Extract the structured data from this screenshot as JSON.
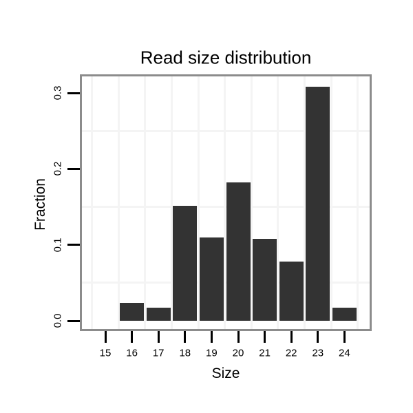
{
  "chart_data": {
    "type": "bar",
    "title": "Read size distribution",
    "xlabel": "Size",
    "ylabel": "Fraction",
    "categories": [
      "15",
      "16",
      "17",
      "18",
      "19",
      "20",
      "21",
      "22",
      "23",
      "24"
    ],
    "values": [
      0,
      0.024,
      0.017,
      0.151,
      0.11,
      0.182,
      0.108,
      0.078,
      0.308,
      0.017
    ],
    "ylim": [
      0,
      0.322
    ],
    "yticks": [
      0.0,
      0.1,
      0.2,
      0.3
    ],
    "ytick_labels": [
      "0.0",
      "0.1",
      "0.2",
      "0.3"
    ],
    "grid": {
      "horizontal_minor_at": [
        0.05,
        0.15,
        0.25
      ],
      "vertical_at_category_boundaries": true
    },
    "legend_position": "none",
    "colors": {
      "bar": "#333333",
      "panel_border": "#8c8c8c",
      "gridline": "#f4f4f4",
      "tick": "#000000",
      "text": "#000000",
      "background": "#ffffff"
    }
  }
}
